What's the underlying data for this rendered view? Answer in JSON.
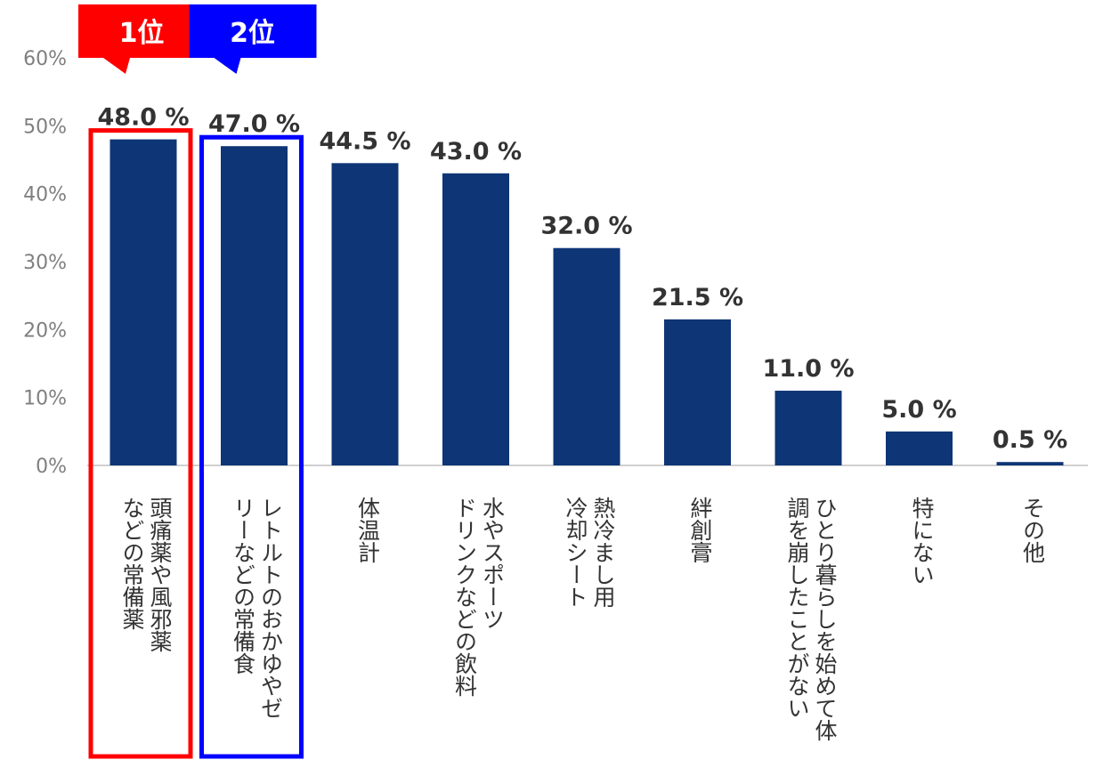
{
  "chart_data": {
    "type": "bar",
    "title": "",
    "xlabel": "",
    "ylabel": "",
    "ylim": [
      0,
      60
    ],
    "y_ticks": [
      "0%",
      "10%",
      "20%",
      "30%",
      "40%",
      "50%",
      "60%"
    ],
    "y_tick_values": [
      0,
      10,
      20,
      30,
      40,
      50,
      60
    ],
    "grid": false,
    "bar_color": "#0e3575",
    "categories": [
      [
        "頭痛薬や風邪薬",
        "などの常備薬"
      ],
      [
        "レトルトのおかゆやゼ",
        "リーなどの常備食"
      ],
      [
        "体温計"
      ],
      [
        "水やスポーツ",
        "ドリンクなどの飲料"
      ],
      [
        "熱冷まし用",
        "冷却シート"
      ],
      [
        "絆創膏"
      ],
      [
        "ひとり暮らしを始めて体",
        "調を崩したことがない"
      ],
      [
        "特にない"
      ],
      [
        "その他"
      ]
    ],
    "values": [
      48.0,
      47.0,
      44.5,
      43.0,
      32.0,
      21.5,
      11.0,
      5.0,
      0.5
    ],
    "data_labels": [
      "48.0 %",
      "47.0 %",
      "44.5 %",
      "43.0 %",
      "32.0 %",
      "21.5 %",
      "11.0 %",
      "5.0 %",
      "0.5 %"
    ],
    "highlights": [
      {
        "rank_label": "1位",
        "category_index": 0,
        "color": "#ff0000"
      },
      {
        "rank_label": "2位",
        "category_index": 1,
        "color": "#0000ff"
      }
    ]
  }
}
